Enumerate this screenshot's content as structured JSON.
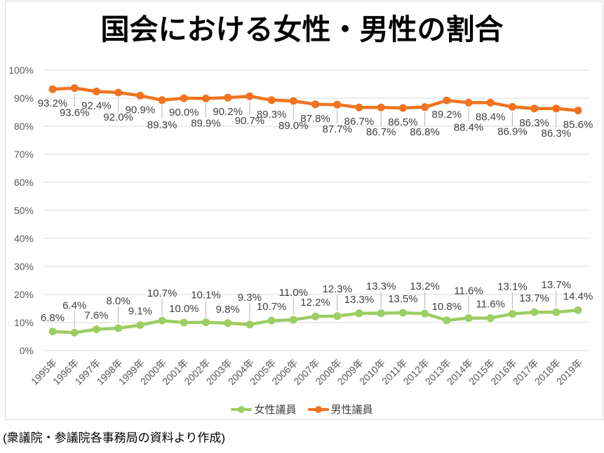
{
  "source_note": "(衆議院・参議院各事務局の資料より作成)",
  "chart_data": {
    "type": "line",
    "title": "国会における女性・男性の割合",
    "categories": [
      "1995年",
      "1996年",
      "1997年",
      "1998年",
      "1999年",
      "2000年",
      "2001年",
      "2002年",
      "2003年",
      "2004年",
      "2005年",
      "2006年",
      "2007年",
      "2008年",
      "2009年",
      "2010年",
      "2011年",
      "2012年",
      "2013年",
      "2014年",
      "2015年",
      "2016年",
      "2017年",
      "2018年",
      "2019年"
    ],
    "series": [
      {
        "name": "女性議員",
        "color": "#9CCE63",
        "values": [
          6.8,
          6.4,
          7.6,
          8.0,
          9.1,
          10.7,
          10.0,
          10.1,
          9.8,
          9.3,
          10.7,
          11.0,
          12.2,
          12.3,
          13.3,
          13.3,
          13.5,
          13.2,
          10.8,
          11.6,
          11.6,
          13.1,
          13.7,
          13.7,
          14.4
        ]
      },
      {
        "name": "男性議員",
        "color": "#F07320",
        "values": [
          93.2,
          93.6,
          92.4,
          92.0,
          90.9,
          89.3,
          90.0,
          89.9,
          90.2,
          90.7,
          89.3,
          89.0,
          87.8,
          87.7,
          86.7,
          86.7,
          86.5,
          86.8,
          89.2,
          88.4,
          88.4,
          86.9,
          86.3,
          86.3,
          85.6
        ]
      }
    ],
    "y_ticks": [
      "0%",
      "10%",
      "20%",
      "30%",
      "40%",
      "50%",
      "60%",
      "70%",
      "80%",
      "90%",
      "100%"
    ],
    "ylim": [
      0,
      100
    ],
    "grid": true,
    "data_labels": true,
    "legend_position": "bottom",
    "grid_color": "#D9D9D9",
    "border_color": "#D9D9D9",
    "leader_color": "#B3B3B3",
    "data_label_color": "#404040",
    "axis_text_color": "#595959"
  }
}
